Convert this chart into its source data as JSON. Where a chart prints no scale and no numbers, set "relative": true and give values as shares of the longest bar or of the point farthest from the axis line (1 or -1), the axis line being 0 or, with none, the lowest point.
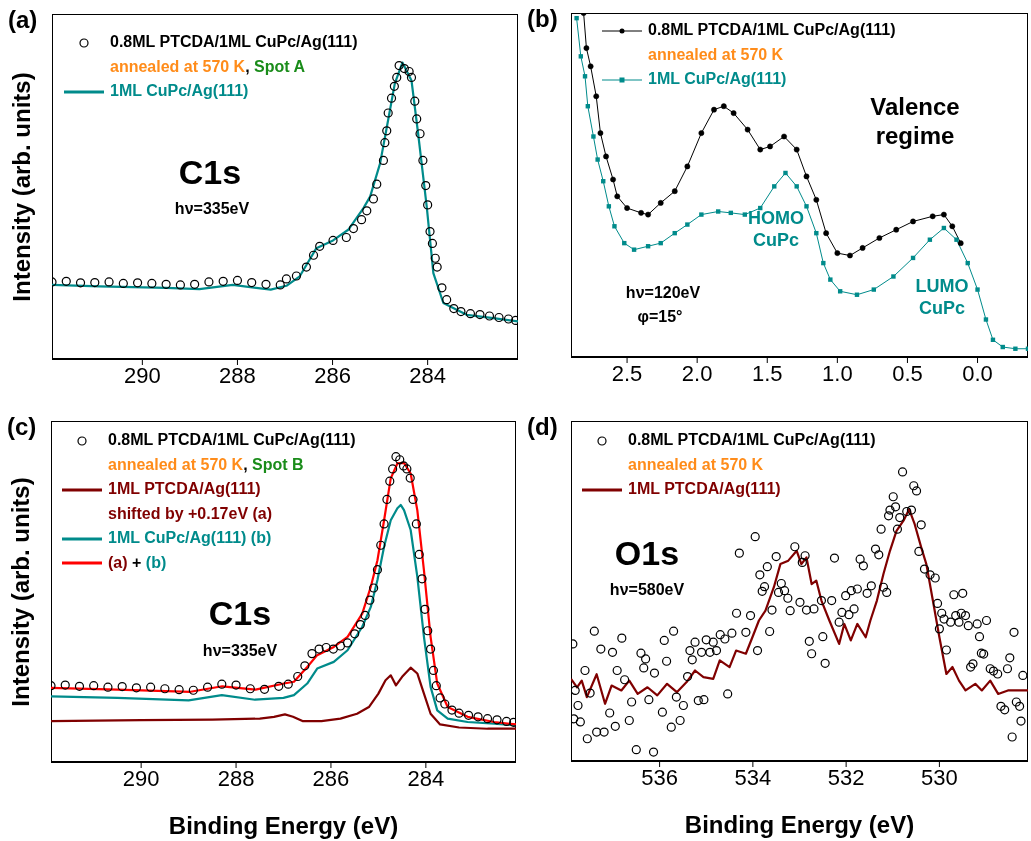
{
  "chart_data": [
    {
      "type": "scatter",
      "title": "(a)",
      "ylabel": "Intensity (arb. units)",
      "xlim": [
        291.9,
        282.1
      ],
      "xticks": [
        290,
        288,
        286,
        284
      ],
      "relative": true,
      "legend": "top left",
      "annotations": [
        "annealed at 570 K, Spot A",
        "C1s",
        "hν=335eV"
      ],
      "series": [
        {
          "name": "0.8ML PTCDA/1ML CuPc/Ag(111)",
          "marker": "circle",
          "color": "#000000",
          "x": [
            291.9,
            291.6,
            291.3,
            291.0,
            290.7,
            290.4,
            290.1,
            289.8,
            289.5,
            289.2,
            288.9,
            288.6,
            288.3,
            288.0,
            287.7,
            287.4,
            287.1,
            286.97,
            286.76,
            286.55,
            286.4,
            286.27,
            285.99,
            285.71,
            285.56,
            285.39,
            285.28,
            285.14,
            285.07,
            284.93,
            284.9,
            284.86,
            284.83,
            284.76,
            284.7,
            284.65,
            284.6,
            284.49,
            284.39,
            284.34,
            284.27,
            284.23,
            284.16,
            284.1,
            284.04,
            284.0,
            283.95,
            283.9,
            283.84,
            283.8,
            283.7,
            283.6,
            283.45,
            283.3,
            283.1,
            282.9,
            282.7,
            282.5,
            282.3,
            282.15
          ],
          "values": [
            0.26,
            0.262,
            0.257,
            0.258,
            0.26,
            0.255,
            0.257,
            0.255,
            0.252,
            0.25,
            0.252,
            0.26,
            0.262,
            0.265,
            0.258,
            0.252,
            0.25,
            0.27,
            0.28,
            0.31,
            0.35,
            0.38,
            0.4,
            0.41,
            0.44,
            0.47,
            0.5,
            0.54,
            0.59,
            0.67,
            0.73,
            0.77,
            0.83,
            0.88,
            0.92,
            0.95,
            0.99,
            0.98,
            0.97,
            0.95,
            0.87,
            0.81,
            0.76,
            0.67,
            0.585,
            0.52,
            0.43,
            0.39,
            0.34,
            0.31,
            0.24,
            0.2,
            0.17,
            0.16,
            0.153,
            0.15,
            0.145,
            0.14,
            0.135,
            0.13
          ]
        },
        {
          "name": "1ML CuPc/Ag(111)",
          "type": "line",
          "marker": "none",
          "color": "#008b8b",
          "x": [
            291.9,
            290.9,
            289.5,
            288.8,
            288.1,
            287.3,
            286.97,
            286.69,
            286.34,
            285.99,
            285.67,
            285.35,
            285.21,
            285.0,
            284.83,
            284.69,
            284.53,
            284.34,
            284.2,
            284.02,
            283.88,
            283.67,
            283.18,
            282.62,
            282.1
          ],
          "values": [
            0.25,
            0.245,
            0.24,
            0.236,
            0.25,
            0.234,
            0.247,
            0.279,
            0.374,
            0.4,
            0.436,
            0.509,
            0.548,
            0.66,
            0.807,
            0.93,
            1.0,
            0.94,
            0.76,
            0.515,
            0.29,
            0.189,
            0.149,
            0.138,
            0.127
          ]
        }
      ]
    },
    {
      "type": "line",
      "title": "(b)",
      "xlim": [
        2.9,
        -0.36
      ],
      "xticks": [
        2.5,
        {
          "value": 2,
          "label": "2.0"
        },
        1.5,
        {
          "value": 1,
          "label": "1.0"
        },
        0.5,
        {
          "value": 0,
          "label": "0.0"
        }
      ],
      "relative": true,
      "legend": "top left",
      "annotations": [
        "annealed at 570 K",
        "Valence regime",
        "HOMO\nCuPc",
        "LUMO\nCuPc",
        "hν=120eV",
        "φ=15°"
      ],
      "series": [
        {
          "name": "0.8ML PTCDA/1ML CuPc/Ag(111)",
          "marker": "circle",
          "color": "#000000",
          "x": [
            2.81,
            2.79,
            2.76,
            2.72,
            2.69,
            2.65,
            2.6,
            2.57,
            2.5,
            2.4,
            2.35,
            2.26,
            2.16,
            2.07,
            1.97,
            1.88,
            1.81,
            1.74,
            1.64,
            1.55,
            1.48,
            1.38,
            1.29,
            1.22,
            1.15,
            1.08,
            1.0,
            0.91,
            0.82,
            0.7,
            0.58,
            0.46,
            0.32,
            0.24,
            0.18,
            0.12
          ],
          "values": [
            1.0,
            0.898,
            0.845,
            0.758,
            0.651,
            0.583,
            0.516,
            0.467,
            0.433,
            0.419,
            0.414,
            0.448,
            0.482,
            0.554,
            0.651,
            0.719,
            0.729,
            0.709,
            0.661,
            0.603,
            0.612,
            0.641,
            0.603,
            0.525,
            0.457,
            0.36,
            0.302,
            0.295,
            0.317,
            0.346,
            0.37,
            0.394,
            0.409,
            0.414,
            0.38,
            0.331
          ]
        },
        {
          "name": "1ML CuPc/Ag(111)",
          "marker": "square",
          "color": "#008b8b",
          "x": [
            2.86,
            2.83,
            2.8,
            2.78,
            2.74,
            2.71,
            2.67,
            2.63,
            2.59,
            2.52,
            2.45,
            2.35,
            2.26,
            2.16,
            2.07,
            1.97,
            1.85,
            1.76,
            1.66,
            1.55,
            1.45,
            1.37,
            1.29,
            1.22,
            1.15,
            1.1,
            1.05,
            0.98,
            0.86,
            0.74,
            0.6,
            0.46,
            0.34,
            0.24,
            0.15,
            0.07,
            0.0,
            -0.06,
            -0.11,
            -0.18,
            -0.27,
            -0.36
          ],
          "values": [
            0.985,
            0.874,
            0.816,
            0.729,
            0.641,
            0.574,
            0.511,
            0.438,
            0.38,
            0.331,
            0.312,
            0.322,
            0.331,
            0.36,
            0.385,
            0.414,
            0.423,
            0.419,
            0.414,
            0.433,
            0.496,
            0.535,
            0.496,
            0.438,
            0.36,
            0.273,
            0.225,
            0.191,
            0.181,
            0.196,
            0.234,
            0.288,
            0.341,
            0.375,
            0.341,
            0.273,
            0.196,
            0.109,
            0.05,
            0.029,
            0.024,
            0.024
          ]
        }
      ]
    },
    {
      "type": "line",
      "title": "(c)",
      "ylabel": "Intensity (arb. units)",
      "xlabel": "Binding Energy (eV)",
      "xlim": [
        291.9,
        282.1
      ],
      "xticks": [
        290,
        288,
        286,
        284
      ],
      "relative": true,
      "legend": "top left",
      "annotations": [
        "annealed at 570 K, Spot B",
        "shifted by +0.17eV (a)",
        "C1s",
        "hν=335eV"
      ],
      "series": [
        {
          "name": "0.8ML PTCDA/1ML CuPc/Ag(111)",
          "type": "scatter",
          "marker": "circle",
          "color": "#000000",
          "x": [
            291.9,
            291.6,
            291.3,
            291.0,
            290.7,
            290.4,
            290.1,
            289.8,
            289.5,
            289.2,
            288.9,
            288.6,
            288.3,
            288.0,
            287.7,
            287.4,
            287.1,
            286.9,
            286.7,
            286.55,
            286.4,
            286.25,
            286.1,
            285.95,
            285.8,
            285.65,
            285.5,
            285.38,
            285.28,
            285.18,
            285.1,
            285.02,
            284.95,
            284.88,
            284.82,
            284.76,
            284.7,
            284.63,
            284.55,
            284.47,
            284.4,
            284.33,
            284.27,
            284.2,
            284.14,
            284.08,
            284.02,
            283.96,
            283.9,
            283.84,
            283.78,
            283.7,
            283.6,
            283.45,
            283.3,
            283.1,
            282.9,
            282.7,
            282.5,
            282.3,
            282.15
          ],
          "values": [
            0.25,
            0.252,
            0.248,
            0.25,
            0.245,
            0.247,
            0.243,
            0.245,
            0.24,
            0.237,
            0.235,
            0.245,
            0.255,
            0.252,
            0.24,
            0.238,
            0.248,
            0.255,
            0.28,
            0.315,
            0.355,
            0.37,
            0.375,
            0.37,
            0.38,
            0.39,
            0.42,
            0.45,
            0.48,
            0.53,
            0.57,
            0.63,
            0.71,
            0.78,
            0.86,
            0.92,
            0.96,
            1.0,
            0.99,
            0.97,
            0.96,
            0.93,
            0.86,
            0.78,
            0.68,
            0.6,
            0.5,
            0.43,
            0.37,
            0.3,
            0.25,
            0.21,
            0.19,
            0.17,
            0.16,
            0.153,
            0.148,
            0.142,
            0.138,
            0.133,
            0.13
          ]
        },
        {
          "name": "1ML PTCDA/Ag(111)",
          "marker": "none",
          "color": "#800000",
          "x": [
            291.9,
            290.0,
            288.5,
            287.5,
            287.2,
            286.97,
            286.8,
            286.6,
            286.2,
            285.8,
            285.45,
            285.2,
            285.0,
            284.85,
            284.74,
            284.63,
            284.5,
            284.32,
            284.18,
            284.04,
            283.9,
            283.7,
            283.3,
            282.7,
            282.1
          ],
          "values": [
            0.134,
            0.137,
            0.139,
            0.142,
            0.148,
            0.156,
            0.148,
            0.134,
            0.134,
            0.142,
            0.158,
            0.18,
            0.224,
            0.268,
            0.284,
            0.251,
            0.279,
            0.309,
            0.29,
            0.224,
            0.158,
            0.123,
            0.113,
            0.109,
            0.109
          ]
        },
        {
          "name": "1ML CuPc/Ag(111) (b)",
          "marker": "none",
          "color": "#008b8b",
          "x": [
            291.9,
            290.5,
            289.0,
            288.3,
            287.6,
            287.0,
            286.78,
            286.5,
            286.29,
            285.94,
            285.65,
            285.34,
            285.16,
            285.02,
            284.88,
            284.74,
            284.6,
            284.53,
            284.46,
            284.32,
            284.18,
            284.04,
            283.9,
            283.76,
            283.54,
            283.12,
            282.56,
            282.1
          ],
          "values": [
            0.215,
            0.21,
            0.202,
            0.219,
            0.204,
            0.21,
            0.219,
            0.257,
            0.306,
            0.328,
            0.366,
            0.443,
            0.508,
            0.596,
            0.705,
            0.792,
            0.831,
            0.842,
            0.825,
            0.76,
            0.607,
            0.41,
            0.246,
            0.169,
            0.142,
            0.131,
            0.126,
            0.12
          ]
        },
        {
          "name": "(a) + (b)",
          "marker": "none",
          "color": "#ff0000",
          "x": [
            291.9,
            290.5,
            288.96,
            288.29,
            287.59,
            286.99,
            286.78,
            286.5,
            286.29,
            285.94,
            285.65,
            285.34,
            285.16,
            285.02,
            284.88,
            284.74,
            284.6,
            284.46,
            284.32,
            284.18,
            284.04,
            283.9,
            283.76,
            283.54,
            283.12,
            282.56,
            282.1
          ],
          "values": [
            0.243,
            0.237,
            0.23,
            0.248,
            0.237,
            0.257,
            0.263,
            0.311,
            0.35,
            0.377,
            0.41,
            0.486,
            0.574,
            0.661,
            0.792,
            0.929,
            0.978,
            0.98,
            0.945,
            0.825,
            0.628,
            0.41,
            0.257,
            0.18,
            0.148,
            0.131,
            0.123
          ]
        }
      ]
    },
    {
      "type": "scatter",
      "title": "(d)",
      "xlabel": "Binding Energy (eV)",
      "xlim": [
        537.9,
        528.1
      ],
      "xticks": [
        536,
        534,
        532,
        530
      ],
      "relative": true,
      "legend": "top left",
      "annotations": [
        "annealed at 570 K",
        "O1s",
        "hν=580eV"
      ],
      "series": [
        {
          "name": "0.8ML PTCDA/1ML CuPc/Ag(111)",
          "marker": "circle",
          "color": "#000000",
          "x": [
            537.86,
            537.84,
            537.81,
            537.75,
            537.7,
            537.6,
            537.55,
            537.49,
            537.4,
            537.35,
            537.26,
            537.19,
            537.07,
            537.01,
            536.95,
            536.91,
            536.81,
            536.75,
            536.65,
            536.6,
            536.5,
            536.4,
            536.34,
            536.3,
            536.23,
            536.13,
            536.11,
            535.94,
            535.9,
            535.85,
            535.75,
            535.7,
            535.64,
            535.56,
            535.49,
            535.4,
            535.35,
            535.3,
            535.24,
            535.17,
            535.1,
            535.05,
            535.0,
            534.92,
            534.85,
            534.78,
            534.7,
            534.6,
            534.54,
            534.45,
            534.35,
            534.29,
            534.15,
            534.05,
            533.95,
            533.9,
            533.85,
            533.8,
            533.75,
            533.69,
            533.64,
            533.59,
            533.5,
            533.45,
            533.39,
            533.32,
            533.25,
            533.2,
            533.1,
            532.99,
            532.94,
            532.88,
            532.85,
            532.79,
            532.74,
            532.69,
            532.53,
            532.5,
            532.45,
            532.31,
            532.25,
            532.15,
            532.09,
            532.01,
            531.94,
            531.89,
            531.83,
            531.76,
            531.7,
            531.63,
            531.55,
            531.46,
            531.37,
            531.3,
            531.25,
            531.2,
            531.13,
            531.09,
            531.06,
            530.99,
            530.94,
            530.9,
            530.85,
            530.79,
            530.7,
            530.6,
            530.55,
            530.49,
            530.44,
            530.39,
            530.32,
            530.2,
            530.09,
            530.04,
            530.0,
            529.95,
            529.9,
            529.85,
            529.76,
            529.69,
            529.65,
            529.58,
            529.53,
            529.5,
            529.44,
            529.38,
            529.33,
            529.28,
            529.19,
            529.14,
            529.1,
            529.05,
            528.99,
            528.91,
            528.84,
            528.75,
            528.68,
            528.6,
            528.54,
            528.49,
            528.44,
            528.4,
            528.35,
            528.28,
            528.25,
            528.21
          ],
          "values": [
            0.405,
            0.146,
            0.244,
            0.192,
            0.135,
            0.313,
            0.077,
            0.235,
            0.449,
            0.1,
            0.387,
            0.1,
            0.166,
            0.376,
            0.12,
            0.313,
            0.425,
            0.281,
            0.14,
            0.204,
            0.039,
            0.373,
            0.322,
            0.353,
            0.212,
            0.031,
            0.304,
            0.169,
            0.417,
            0.345,
            0.117,
            0.449,
            0.221,
            0.14,
            0.192,
            0.292,
            0.382,
            0.35,
            0.411,
            0.209,
            0.376,
            0.212,
            0.419,
            0.376,
            0.411,
            0.382,
            0.437,
            0.422,
            0.232,
            0.442,
            0.511,
            0.719,
            0.445,
            0.503,
            0.776,
            0.382,
            0.644,
            0.587,
            0.603,
            0.672,
            0.448,
            0.522,
            0.707,
            0.583,
            0.614,
            0.589,
            0.563,
            0.52,
            0.741,
            0.549,
            0.687,
            0.71,
            0.522,
            0.414,
            0.371,
            0.526,
            0.555,
            0.43,
            0.338,
            0.555,
            0.702,
            0.48,
            0.514,
            0.572,
            0.506,
            0.589,
            0.526,
            0.595,
            0.698,
            0.675,
            0.58,
            0.606,
            0.733,
            0.713,
            0.802,
            0.601,
            0.583,
            0.848,
            0.868,
            0.914,
            0.879,
            0.802,
            0.842,
            1.0,
            0.863,
            0.868,
            0.952,
            0.934,
            0.725,
            0.817,
            0.664,
            0.644,
            0.633,
            0.545,
            0.457,
            0.511,
            0.491,
            0.384,
            0.48,
            0.575,
            0.503,
            0.48,
            0.511,
            0.58,
            0.503,
            0.468,
            0.325,
            0.336,
            0.474,
            0.43,
            0.373,
            0.37,
            0.486,
            0.319,
            0.311,
            0.301,
            0.189,
            0.177,
            0.319,
            0.357,
            0.083,
            0.445,
            0.204,
            0.189,
            0.138,
            0.296
          ]
        },
        {
          "name": "1ML PTCDA/Ag(111)",
          "type": "line",
          "marker": "none",
          "color": "#800000",
          "x": [
            537.9,
            537.77,
            537.67,
            537.56,
            537.35,
            537.17,
            537.03,
            536.82,
            536.65,
            536.47,
            536.26,
            536.05,
            535.84,
            535.63,
            535.42,
            535.24,
            535.06,
            534.85,
            534.71,
            534.5,
            534.36,
            534.15,
            534.01,
            533.87,
            533.73,
            533.55,
            533.41,
            533.24,
            533.06,
            532.96,
            532.85,
            532.74,
            532.64,
            532.53,
            532.36,
            532.15,
            532.04,
            531.9,
            531.76,
            531.58,
            531.48,
            531.34,
            531.2,
            531.06,
            530.92,
            530.77,
            530.65,
            530.53,
            530.39,
            530.28,
            530.14,
            530.0,
            529.85,
            529.72,
            529.58,
            529.44,
            529.23,
            529.09,
            528.91,
            528.74,
            528.53,
            528.1
          ],
          "values": [
            0.284,
            0.255,
            0.278,
            0.221,
            0.3,
            0.198,
            0.261,
            0.244,
            0.278,
            0.232,
            0.255,
            0.227,
            0.267,
            0.238,
            0.273,
            0.313,
            0.29,
            0.284,
            0.348,
            0.325,
            0.382,
            0.371,
            0.428,
            0.486,
            0.52,
            0.601,
            0.681,
            0.693,
            0.727,
            0.681,
            0.704,
            0.612,
            0.624,
            0.555,
            0.486,
            0.405,
            0.474,
            0.417,
            0.474,
            0.428,
            0.486,
            0.555,
            0.647,
            0.727,
            0.796,
            0.831,
            0.871,
            0.819,
            0.739,
            0.681,
            0.555,
            0.428,
            0.301,
            0.325,
            0.278,
            0.244,
            0.267,
            0.244,
            0.278,
            0.232,
            0.244,
            0.244
          ]
        }
      ]
    }
  ]
}
